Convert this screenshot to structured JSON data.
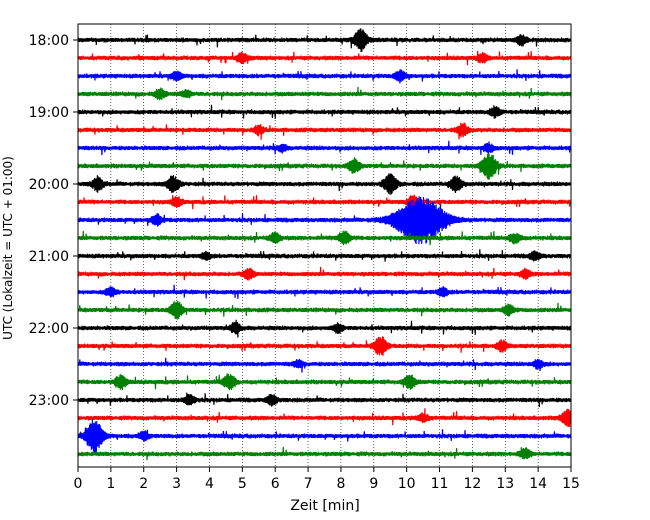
{
  "chart_data": {
    "type": "line",
    "title": "",
    "xlabel": "Zeit  [min]",
    "ylabel": "UTC (Lokalzeit = UTC + 01:00)",
    "xlim": [
      0,
      15
    ],
    "x_ticks": [
      "0",
      "1",
      "2",
      "3",
      "4",
      "5",
      "6",
      "7",
      "8",
      "9",
      "10",
      "11",
      "12",
      "13",
      "14",
      "15"
    ],
    "y_ticks": [
      "18:00",
      "19:00",
      "20:00",
      "21:00",
      "22:00",
      "23:00"
    ],
    "grid": "vertical dotted at each minute",
    "trace_interval_minutes": 15,
    "start_time": "18:00",
    "colors": [
      "#000000",
      "#ff0000",
      "#0000ff",
      "#008000"
    ],
    "series": [
      {
        "start": "18:00",
        "events": [
          {
            "x": 8.6,
            "amp": 1.2
          },
          {
            "x": 13.5,
            "amp": 0.6
          }
        ]
      },
      {
        "start": "18:15",
        "events": [
          {
            "x": 5.0,
            "amp": 0.6
          },
          {
            "x": 12.3,
            "amp": 0.5
          }
        ]
      },
      {
        "start": "18:30",
        "events": [
          {
            "x": 3.0,
            "amp": 0.5
          },
          {
            "x": 9.8,
            "amp": 0.6
          }
        ]
      },
      {
        "start": "18:45",
        "events": [
          {
            "x": 2.5,
            "amp": 0.6
          },
          {
            "x": 3.3,
            "amp": 0.4
          }
        ]
      },
      {
        "start": "19:00",
        "events": [
          {
            "x": 12.7,
            "amp": 0.6
          }
        ]
      },
      {
        "start": "19:15",
        "events": [
          {
            "x": 5.5,
            "amp": 0.5
          },
          {
            "x": 11.7,
            "amp": 0.7
          }
        ]
      },
      {
        "start": "19:30",
        "events": [
          {
            "x": 6.2,
            "amp": 0.4
          },
          {
            "x": 12.5,
            "amp": 0.5
          }
        ]
      },
      {
        "start": "19:45",
        "events": [
          {
            "x": 8.4,
            "amp": 0.8
          },
          {
            "x": 12.5,
            "amp": 1.6
          }
        ]
      },
      {
        "start": "20:00",
        "events": [
          {
            "x": 0.6,
            "amp": 0.8
          },
          {
            "x": 2.9,
            "amp": 1.0
          },
          {
            "x": 9.5,
            "amp": 1.2
          },
          {
            "x": 11.5,
            "amp": 0.9
          }
        ]
      },
      {
        "start": "20:15",
        "events": [
          {
            "x": 3.0,
            "amp": 0.5
          },
          {
            "x": 10.2,
            "amp": 0.7
          }
        ]
      },
      {
        "start": "20:30",
        "events": [
          {
            "x": 2.4,
            "amp": 0.6
          },
          {
            "x": 10.4,
            "amp": 2.9
          }
        ]
      },
      {
        "start": "20:45",
        "events": [
          {
            "x": 6.0,
            "amp": 0.6
          },
          {
            "x": 8.1,
            "amp": 0.8
          },
          {
            "x": 13.3,
            "amp": 0.6
          }
        ]
      },
      {
        "start": "21:00",
        "events": [
          {
            "x": 3.9,
            "amp": 0.4
          },
          {
            "x": 13.9,
            "amp": 0.5
          }
        ]
      },
      {
        "start": "21:15",
        "events": [
          {
            "x": 5.2,
            "amp": 0.6
          },
          {
            "x": 13.6,
            "amp": 0.5
          }
        ]
      },
      {
        "start": "21:30",
        "events": [
          {
            "x": 1.0,
            "amp": 0.5
          },
          {
            "x": 11.1,
            "amp": 0.5
          }
        ]
      },
      {
        "start": "21:45",
        "events": [
          {
            "x": 3.0,
            "amp": 1.0
          },
          {
            "x": 13.1,
            "amp": 0.6
          }
        ]
      },
      {
        "start": "22:00",
        "events": [
          {
            "x": 4.8,
            "amp": 0.6
          },
          {
            "x": 7.9,
            "amp": 0.5
          }
        ]
      },
      {
        "start": "22:15",
        "events": [
          {
            "x": 9.2,
            "amp": 1.1
          },
          {
            "x": 12.9,
            "amp": 0.6
          }
        ]
      },
      {
        "start": "22:30",
        "events": [
          {
            "x": 6.7,
            "amp": 0.4
          },
          {
            "x": 14.0,
            "amp": 0.5
          }
        ]
      },
      {
        "start": "22:45",
        "events": [
          {
            "x": 1.3,
            "amp": 0.8
          },
          {
            "x": 4.6,
            "amp": 0.9
          },
          {
            "x": 10.1,
            "amp": 0.8
          }
        ]
      },
      {
        "start": "23:00",
        "events": [
          {
            "x": 3.4,
            "amp": 0.6
          },
          {
            "x": 5.9,
            "amp": 0.6
          }
        ]
      },
      {
        "start": "23:15",
        "events": [
          {
            "x": 10.5,
            "amp": 0.5
          },
          {
            "x": 14.9,
            "amp": 1.0
          }
        ]
      },
      {
        "start": "23:30",
        "events": [
          {
            "x": 0.5,
            "amp": 2.0
          },
          {
            "x": 2.0,
            "amp": 0.5
          }
        ]
      },
      {
        "start": "23:45",
        "events": [
          {
            "x": 13.6,
            "amp": 0.6
          }
        ]
      }
    ]
  }
}
